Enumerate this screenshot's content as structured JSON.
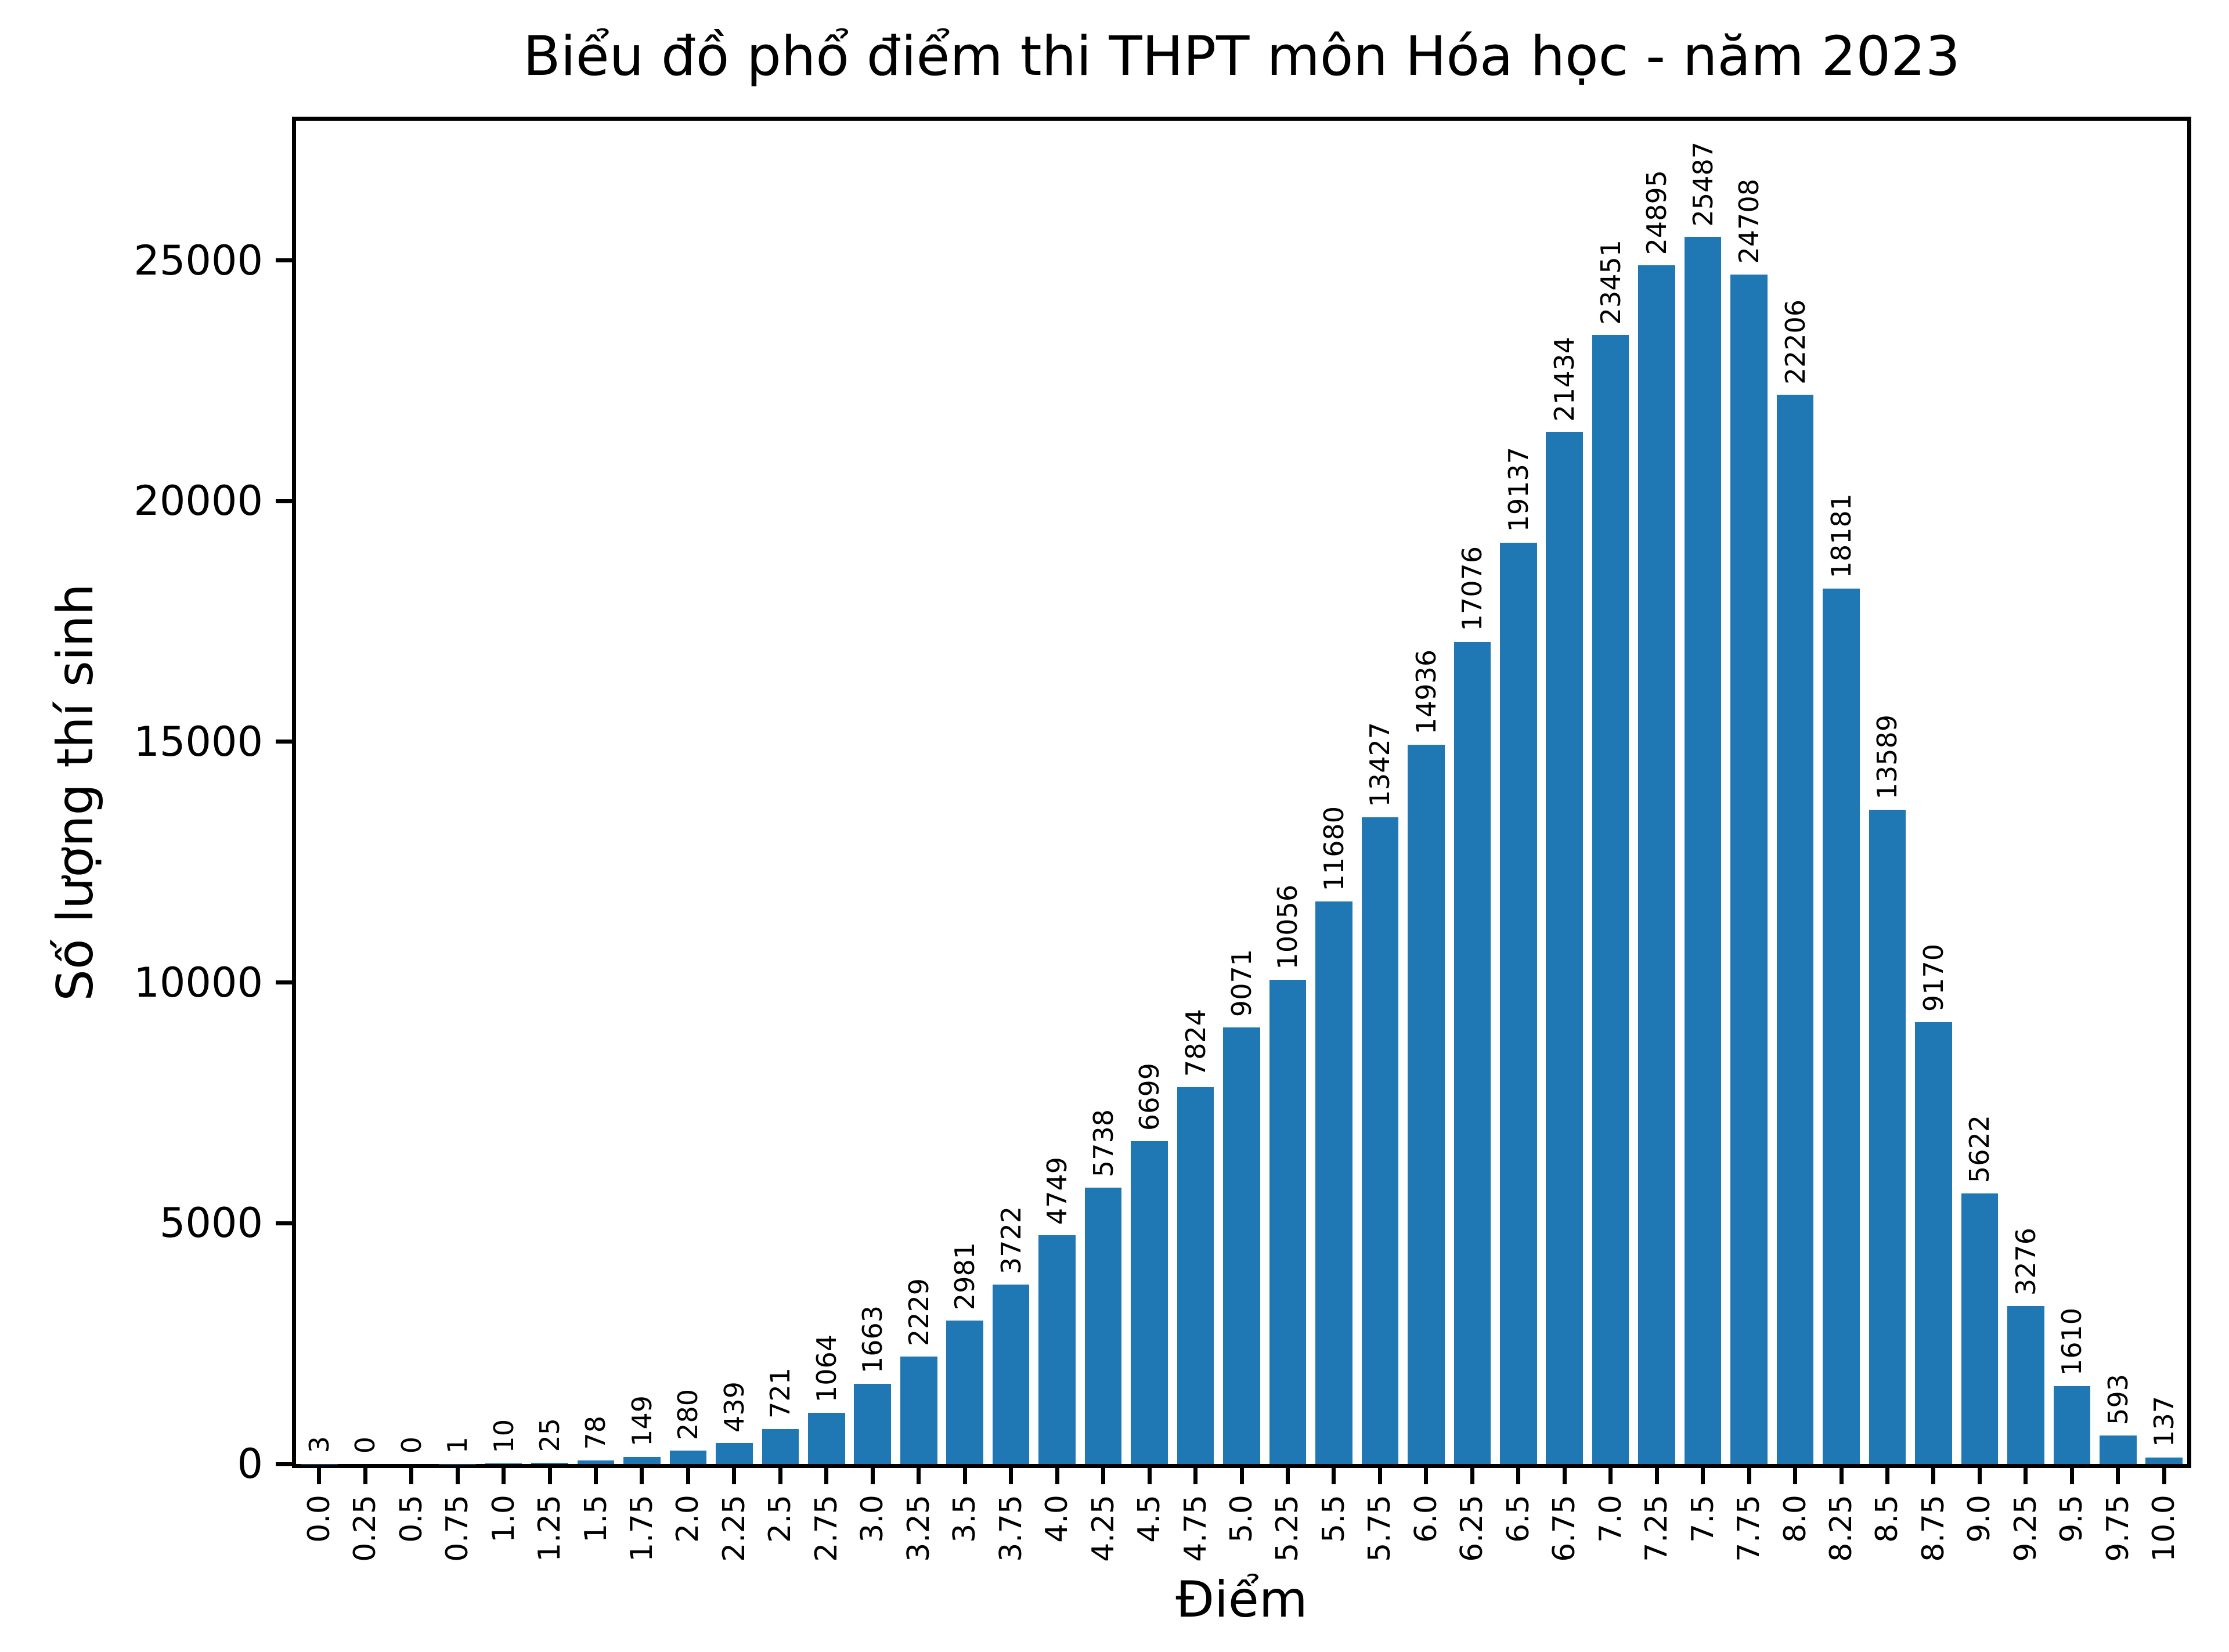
{
  "figure": {
    "background": "#ffffff",
    "text_color": "#000000"
  },
  "chart_data": {
    "type": "bar",
    "title": "Biểu đồ phổ điểm thi THPT môn Hóa học - năm 2023",
    "xlabel": "Điểm",
    "ylabel": "Số lượng thí sinh",
    "bar_color": "#1f77b4",
    "grid": false,
    "legend": null,
    "xtick_rotation": 90,
    "bar_label_rotation": 90,
    "categories": [
      "0.0",
      "0.25",
      "0.5",
      "0.75",
      "1.0",
      "1.25",
      "1.5",
      "1.75",
      "2.0",
      "2.25",
      "2.5",
      "2.75",
      "3.0",
      "3.25",
      "3.5",
      "3.75",
      "4.0",
      "4.25",
      "4.5",
      "4.75",
      "5.0",
      "5.25",
      "5.5",
      "5.75",
      "6.0",
      "6.25",
      "6.5",
      "6.75",
      "7.0",
      "7.25",
      "7.5",
      "7.75",
      "8.0",
      "8.25",
      "8.5",
      "8.75",
      "9.0",
      "9.25",
      "9.5",
      "9.75",
      "10.0"
    ],
    "values": [
      3,
      0,
      0,
      1,
      10,
      25,
      78,
      149,
      280,
      439,
      721,
      1064,
      1663,
      2229,
      2981,
      3722,
      4749,
      5738,
      6699,
      7824,
      9071,
      10056,
      11680,
      13427,
      14936,
      17076,
      19137,
      21434,
      23451,
      24895,
      25487,
      24708,
      22206,
      18181,
      13589,
      9170,
      5622,
      3276,
      1610,
      593,
      137
    ],
    "yticks": [
      0,
      5000,
      10000,
      15000,
      20000,
      25000
    ],
    "ylim": [
      0,
      27900
    ]
  }
}
